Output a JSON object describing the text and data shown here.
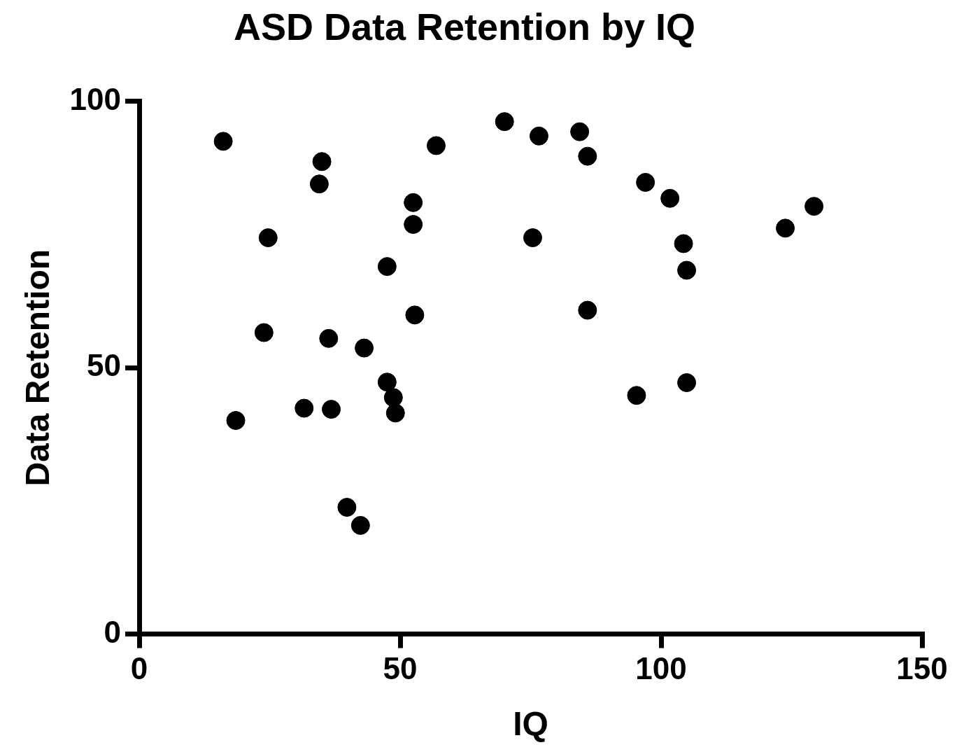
{
  "chart_data": {
    "type": "scatter",
    "title": "ASD Data Retention by IQ",
    "xlabel": "IQ",
    "ylabel": "Data Retention",
    "x": [
      16.1,
      18.5,
      24.7,
      23.9,
      31.6,
      35.0,
      34.5,
      36.3,
      36.8,
      39.8,
      42.4,
      43.1,
      47.5,
      47.5,
      48.7,
      49.1,
      52.5,
      52.5,
      52.8,
      56.9,
      70.0,
      76.6,
      75.4,
      84.4,
      85.9,
      85.9,
      95.3,
      97.0,
      101.7,
      104.3,
      104.9,
      104.9,
      123.8,
      129.3
    ],
    "values": [
      92.5,
      40.1,
      74.4,
      56.6,
      42.4,
      88.7,
      84.5,
      55.5,
      42.2,
      23.8,
      20.4,
      53.7,
      69.0,
      47.3,
      44.4,
      41.5,
      81.0,
      76.9,
      59.9,
      91.7,
      96.2,
      93.5,
      74.4,
      94.3,
      89.7,
      60.8,
      44.8,
      84.8,
      81.8,
      73.3,
      68.3,
      47.2,
      76.2,
      80.3
    ],
    "color": "#000000",
    "marker": "circle",
    "xlim": [
      0,
      150
    ],
    "xticks": [
      0,
      50,
      100,
      150
    ],
    "ylim": [
      0,
      100
    ],
    "yticks": [
      0,
      50,
      100
    ],
    "grid": false,
    "legend": false
  }
}
